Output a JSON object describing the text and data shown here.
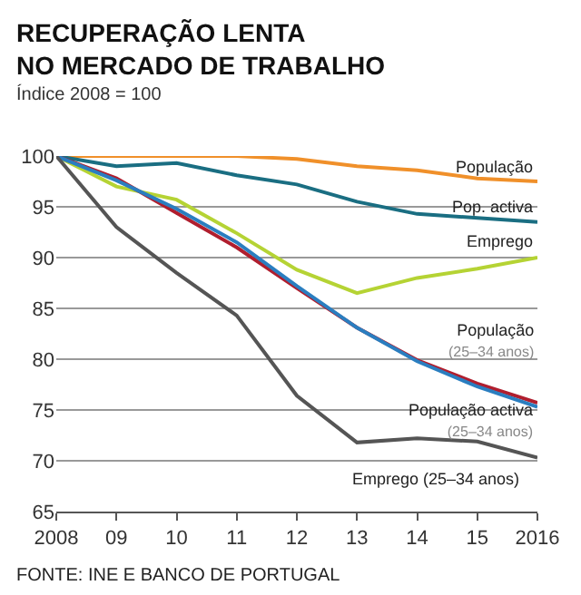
{
  "chart_data": {
    "type": "line",
    "title": "RECUPERAÇÃO LENTA\nNO MERCADO DE TRABALHO",
    "subtitle": "Índice 2008 = 100",
    "x": [
      2008,
      2009,
      2010,
      2011,
      2012,
      2013,
      2014,
      2015,
      2016
    ],
    "xlim": [
      2008,
      2016
    ],
    "xticks": [
      2008,
      {
        "value": 2009,
        "label": "09"
      },
      {
        "value": 2010,
        "label": "10"
      },
      {
        "value": 2011,
        "label": "11"
      },
      {
        "value": 2012,
        "label": "12"
      },
      {
        "value": 2013,
        "label": "13"
      },
      {
        "value": 2014,
        "label": "14"
      },
      {
        "value": 2015,
        "label": "15"
      },
      2016
    ],
    "ylim": [
      65,
      100
    ],
    "yticks": [
      65,
      70,
      75,
      80,
      85,
      90,
      95,
      100
    ],
    "grid": "y",
    "legend": false,
    "marker": "none",
    "line_style": "solid",
    "series": [
      {
        "name": "População",
        "color": "#f0902a",
        "values": [
          100,
          100,
          100,
          100,
          99.7,
          99.0,
          98.6,
          97.8,
          97.5
        ]
      },
      {
        "name": "Pop. activa",
        "color": "#1a6e82",
        "values": [
          100,
          99.0,
          99.3,
          98.1,
          97.2,
          95.5,
          94.3,
          93.9,
          93.5
        ]
      },
      {
        "name": "Emprego",
        "color": "#b5d334",
        "values": [
          100,
          97.0,
          95.7,
          92.4,
          88.8,
          86.5,
          88.0,
          88.9,
          90.0
        ]
      },
      {
        "name": "População (25–34 anos)",
        "color": "#b01e2e",
        "values": [
          100,
          97.8,
          94.4,
          91.0,
          87.0,
          83.1,
          79.9,
          77.6,
          75.7
        ]
      },
      {
        "name": "População activa (25–34 anos)",
        "color": "#2a7ec0",
        "values": [
          100,
          97.6,
          94.8,
          91.5,
          87.2,
          83.1,
          79.8,
          77.3,
          75.3
        ]
      },
      {
        "name": "Emprego (25–34 anos)",
        "color": "#555555",
        "values": [
          100,
          93.0,
          88.5,
          84.3,
          76.4,
          71.8,
          72.2,
          71.9,
          70.3
        ]
      }
    ],
    "annotations": [
      "FONTE: INE E BANCO DE PORTUGAL"
    ]
  }
}
